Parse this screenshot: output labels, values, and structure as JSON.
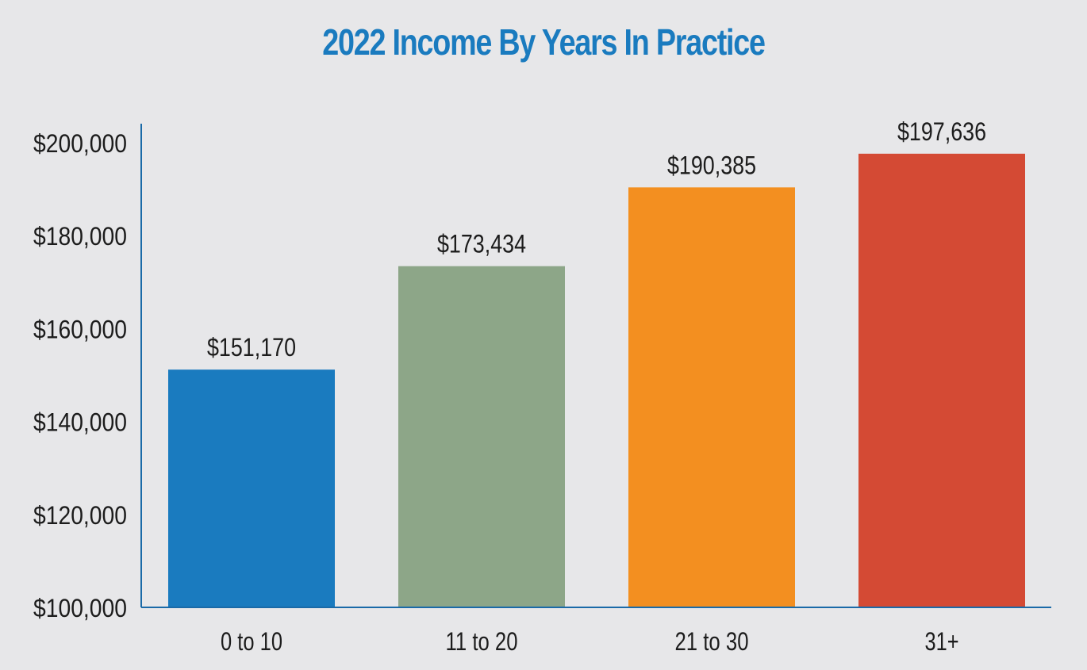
{
  "chart_data": {
    "type": "bar",
    "title": "2022 Income By Years In Practice",
    "categories": [
      "0 to 10",
      "11 to 20",
      "21 to 30",
      "31+"
    ],
    "values": [
      151170,
      173434,
      190385,
      197636
    ],
    "value_labels": [
      "$151,170",
      "$173,434",
      "$190,385",
      "$197,636"
    ],
    "ylim": [
      100000,
      200000
    ],
    "yticks": [
      100000,
      120000,
      140000,
      160000,
      180000,
      200000
    ],
    "ytick_labels": [
      "$100,000",
      "$120,000",
      "$140,000",
      "$160,000",
      "$180,000",
      "$200,000"
    ],
    "xlabel": "",
    "ylabel": "",
    "grid": false,
    "colors": {
      "title": "#1a7bbf",
      "axis": "#1a6aa8",
      "bars": [
        "#1a7bbf",
        "#8da688",
        "#f38f20",
        "#d44a34"
      ]
    }
  }
}
